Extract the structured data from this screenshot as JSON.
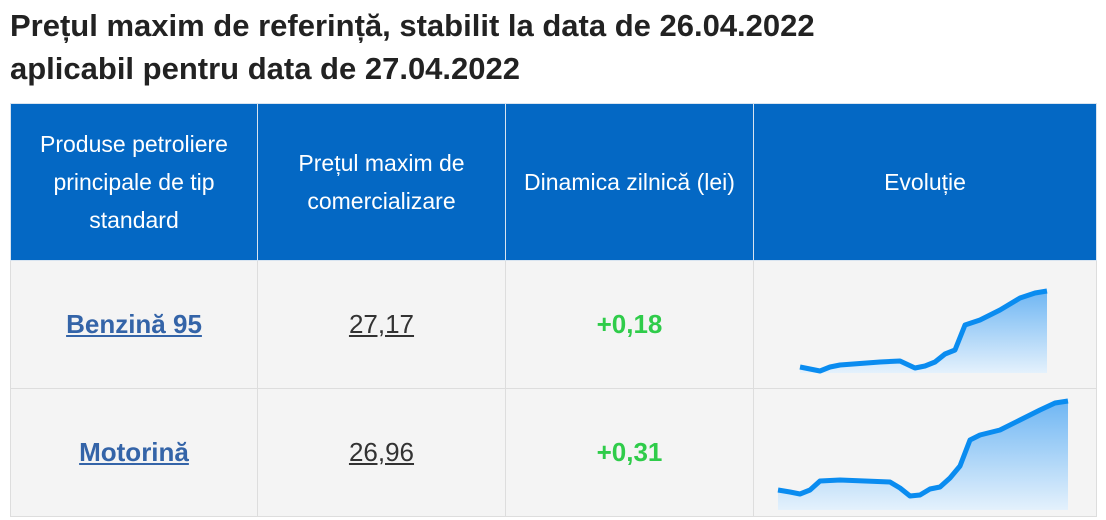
{
  "header": {
    "title_lines": [
      "Prețul maxim de referință, stabilit la data de 26.04.2022",
      "aplicabil pentru data de 27.04.2022"
    ]
  },
  "table": {
    "headers": [
      "Produse petroliere principale de tip standard",
      "Prețul maxim de comercializare",
      "Dinamica zilnică (lei)",
      "Evoluție"
    ],
    "rows": [
      [
        "Benzină 95",
        "27,17",
        "+0,18"
      ],
      [
        "Motorină",
        "26,96",
        "+0,31"
      ]
    ]
  }
}
